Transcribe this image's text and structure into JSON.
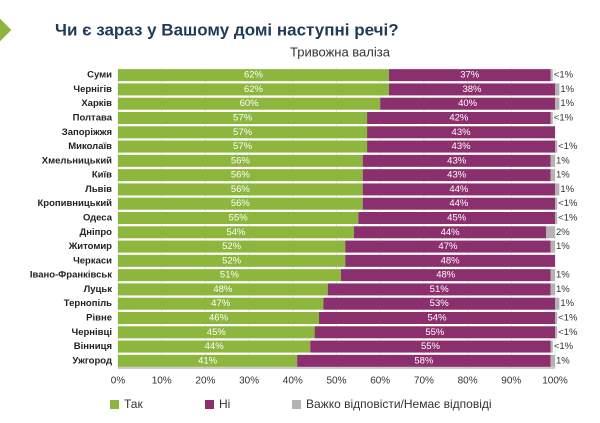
{
  "chart_data": {
    "type": "stacked-barh",
    "title": "Чи є зараз у Вашому домі наступні речі?",
    "subtitle": "Тривожна валіза",
    "categories": [
      "Суми",
      "Чернігів",
      "Харків",
      "Полтава",
      "Запоріжжя",
      "Миколаїв",
      "Хмельницький",
      "Київ",
      "Львів",
      "Кропивницький",
      "Одеса",
      "Дніпро",
      "Житомир",
      "Черкаси",
      "Івано-Франківськ",
      "Луцьк",
      "Тернопіль",
      "Рівне",
      "Чернівці",
      "Вінниця",
      "Ужгород"
    ],
    "series": [
      {
        "name": "Так",
        "color": "#8db63c",
        "values": [
          62,
          62,
          60,
          57,
          57,
          57,
          56,
          56,
          56,
          56,
          55,
          54,
          52,
          52,
          51,
          48,
          47,
          46,
          45,
          44,
          41
        ],
        "value_labels": [
          "62%",
          "62%",
          "60%",
          "57%",
          "57%",
          "57%",
          "56%",
          "56%",
          "56%",
          "56%",
          "55%",
          "54%",
          "52%",
          "52%",
          "51%",
          "48%",
          "47%",
          "46%",
          "45%",
          "44%",
          "41%"
        ]
      },
      {
        "name": "Ні",
        "color": "#8c2f6e",
        "values": [
          37,
          38,
          40,
          42,
          43,
          43,
          43,
          43,
          44,
          44,
          45,
          44,
          47,
          48,
          48,
          51,
          53,
          54,
          55,
          55,
          58
        ],
        "value_labels": [
          "37%",
          "38%",
          "40%",
          "42%",
          "43%",
          "43%",
          "43%",
          "43%",
          "44%",
          "44%",
          "45%",
          "44%",
          "47%",
          "48%",
          "48%",
          "51%",
          "53%",
          "54%",
          "55%",
          "55%",
          "58%"
        ]
      },
      {
        "name": "Важко відповісти/Немає відповіді",
        "color": "#b3b3b3",
        "values": [
          0.5,
          1,
          1,
          0.5,
          null,
          0.5,
          1,
          1,
          1,
          0.5,
          0.5,
          2,
          1,
          null,
          1,
          1,
          1,
          0.5,
          0.5,
          0.5,
          1
        ],
        "value_labels": [
          "<1%",
          "1%",
          "1%",
          "<1%",
          null,
          "<1%",
          "1%",
          "1%",
          "1%",
          "<1%",
          "<1%",
          "2%",
          "1%",
          null,
          "1%",
          "1%",
          "1%",
          "<1%",
          "<1%",
          "<1%",
          "1%"
        ]
      }
    ],
    "xlim": [
      0,
      100
    ],
    "xticks": [
      {
        "value": 0,
        "label": "0%"
      },
      {
        "value": 10,
        "label": "10%"
      },
      {
        "value": 20,
        "label": "20%"
      },
      {
        "value": 30,
        "label": "30%"
      },
      {
        "value": 40,
        "label": "40%"
      },
      {
        "value": 50,
        "label": "50%"
      },
      {
        "value": 60,
        "label": "60%"
      },
      {
        "value": 70,
        "label": "70%"
      },
      {
        "value": 80,
        "label": "80%"
      },
      {
        "value": 90,
        "label": "90%"
      },
      {
        "value": 100,
        "label": "100%"
      }
    ],
    "grid": true
  }
}
